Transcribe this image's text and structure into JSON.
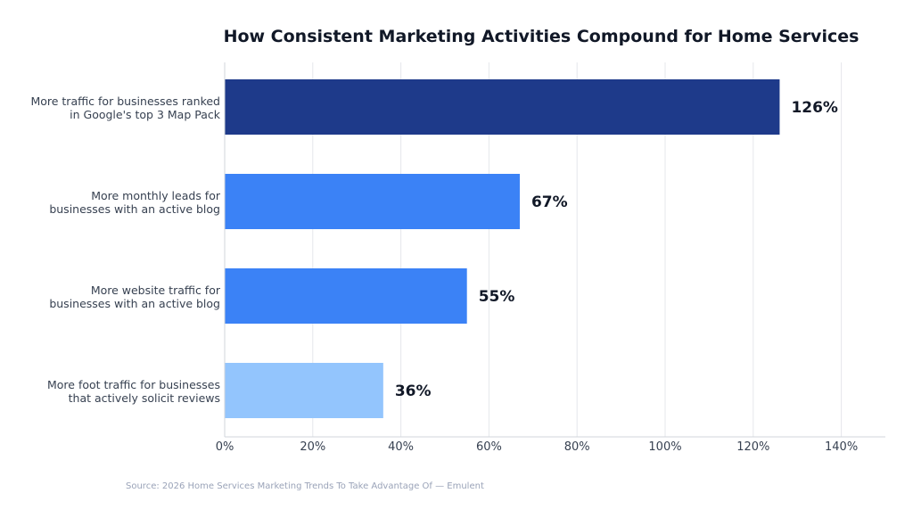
{
  "chart_data": {
    "type": "bar",
    "orientation": "horizontal",
    "title": "How Consistent Marketing Activities Compound for Home Services",
    "categories": [
      [
        "More traffic for businesses ranked",
        "in Google's top 3 Map Pack"
      ],
      [
        "More monthly leads for",
        "businesses with an active blog"
      ],
      [
        "More website traffic for",
        "businesses with an active blog"
      ],
      [
        "More foot traffic for businesses",
        "that actively solicit reviews"
      ]
    ],
    "values": [
      126,
      67,
      55,
      36
    ],
    "data_labels": [
      "126%",
      "67%",
      "55%",
      "36%"
    ],
    "colors": [
      "#1e3a8a",
      "#3b82f6",
      "#3b82f6",
      "#93c5fd"
    ],
    "xlim": [
      0,
      150
    ],
    "xticks": [
      0,
      20,
      40,
      60,
      80,
      100,
      120,
      140
    ],
    "xtick_labels": [
      "0%",
      "20%",
      "40%",
      "60%",
      "80%",
      "100%",
      "120%",
      "140%"
    ],
    "grid": true,
    "xlabel": "",
    "ylabel": ""
  },
  "source": "Source: 2026 Home Services Marketing Trends To Take Advantage Of — Emulent"
}
